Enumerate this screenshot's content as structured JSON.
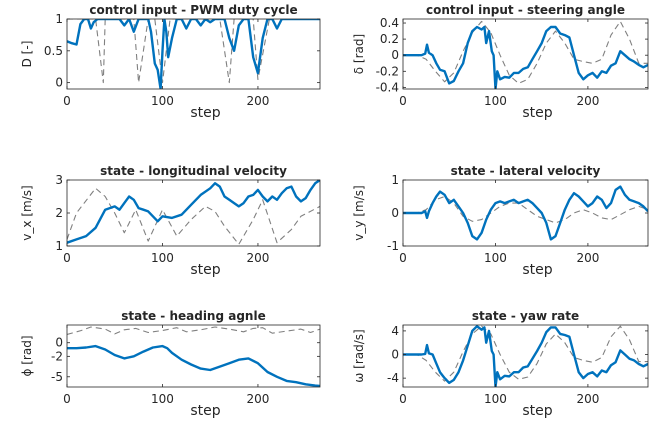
{
  "chart_data": [
    {
      "type": "line",
      "title": "control input - PWM duty cycle",
      "ylabel": "D [-]",
      "xlabel": "step",
      "xlim": [
        0,
        265
      ],
      "ylim": [
        -0.1,
        1
      ],
      "xticks": [
        0,
        100,
        200
      ],
      "yticks": [
        0,
        0.5,
        1
      ],
      "ytick_labels": [
        "0",
        "0.5",
        "1"
      ],
      "grid": false,
      "series": [
        {
          "style": "dashed-gray",
          "x": [
            0,
            12,
            20,
            25,
            30,
            38,
            40,
            50,
            60,
            70,
            75,
            85,
            92,
            100,
            108,
            115,
            125,
            130,
            140,
            150,
            160,
            170,
            175,
            185,
            195,
            200,
            212,
            220,
            226,
            235,
            245,
            250,
            265
          ],
          "y": [
            1,
            1,
            1,
            1,
            1,
            0,
            1,
            1,
            1,
            1,
            0,
            1,
            1,
            0,
            1,
            1,
            1,
            1,
            1,
            1,
            1,
            0,
            1,
            1,
            1,
            0.05,
            1,
            1,
            1,
            1,
            1,
            1,
            1
          ]
        },
        {
          "style": "solid-blue",
          "x": [
            0,
            5,
            10,
            14,
            18,
            22,
            25,
            28,
            32,
            35,
            40,
            45,
            50,
            55,
            60,
            65,
            70,
            75,
            80,
            85,
            88,
            92,
            95,
            98,
            100,
            102,
            104,
            106,
            110,
            115,
            120,
            125,
            130,
            135,
            140,
            145,
            150,
            155,
            160,
            165,
            170,
            175,
            180,
            185,
            190,
            195,
            200,
            205,
            210,
            215,
            220,
            225,
            230,
            235,
            240,
            245,
            250,
            255,
            260,
            265
          ],
          "y": [
            0.65,
            0.62,
            0.6,
            0.92,
            1,
            1,
            0.85,
            0.95,
            1,
            1,
            1,
            1,
            1,
            1,
            0.9,
            1,
            0.8,
            1,
            1,
            1,
            0.8,
            0.3,
            0.2,
            -0.1,
            0.5,
            1,
            0.8,
            0.4,
            0.7,
            1,
            1,
            0.85,
            1,
            1,
            0.9,
            1,
            0.95,
            1,
            1,
            1,
            0.7,
            0.5,
            0.9,
            1,
            1,
            0.4,
            0.15,
            0.7,
            1,
            1,
            0.85,
            1,
            1,
            1,
            1,
            1,
            1,
            1,
            1,
            1
          ]
        }
      ]
    },
    {
      "type": "line",
      "title": "control input - steering angle",
      "ylabel": "δ [rad]",
      "xlabel": "step",
      "xlim": [
        0,
        265
      ],
      "ylim": [
        -0.42,
        0.45
      ],
      "xticks": [
        0,
        100,
        200
      ],
      "yticks": [
        -0.4,
        -0.2,
        0,
        0.2,
        0.4
      ],
      "ytick_labels": [
        "-0.4",
        "-0.2",
        "0",
        "0.2",
        "0.4"
      ],
      "grid": false,
      "series": [
        {
          "style": "dashed-gray",
          "x": [
            0,
            15,
            25,
            35,
            45,
            55,
            65,
            75,
            85,
            95,
            105,
            115,
            125,
            135,
            145,
            155,
            165,
            175,
            185,
            195,
            205,
            215,
            225,
            235,
            245,
            255,
            265
          ],
          "y": [
            0,
            0,
            -0.05,
            -0.2,
            -0.33,
            -0.22,
            0.05,
            0.28,
            0.42,
            0.28,
            0,
            -0.25,
            -0.35,
            -0.3,
            -0.1,
            0.15,
            0.3,
            0.15,
            -0.05,
            -0.08,
            -0.1,
            -0.05,
            0.25,
            0.42,
            0.2,
            -0.1,
            -0.1
          ]
        },
        {
          "style": "solid-blue",
          "x": [
            0,
            10,
            20,
            24,
            26,
            28,
            32,
            36,
            40,
            45,
            50,
            55,
            60,
            65,
            70,
            75,
            80,
            85,
            88,
            90,
            93,
            96,
            98,
            100,
            102,
            105,
            110,
            115,
            120,
            125,
            130,
            135,
            140,
            145,
            150,
            155,
            160,
            165,
            170,
            175,
            180,
            185,
            190,
            195,
            200,
            205,
            210,
            215,
            220,
            225,
            230,
            235,
            240,
            245,
            250,
            255,
            260,
            265
          ],
          "y": [
            0,
            0,
            0,
            0.02,
            0.13,
            0.03,
            0.0,
            -0.1,
            -0.18,
            -0.2,
            -0.35,
            -0.32,
            -0.2,
            -0.1,
            0.15,
            0.3,
            0.35,
            0.32,
            0.35,
            0.15,
            0.3,
            0.05,
            0,
            -0.42,
            -0.2,
            -0.3,
            -0.27,
            -0.28,
            -0.22,
            -0.22,
            -0.17,
            -0.15,
            -0.05,
            0.05,
            0.15,
            0.3,
            0.35,
            0.35,
            0.27,
            0.25,
            0.22,
            0,
            -0.22,
            -0.3,
            -0.25,
            -0.22,
            -0.28,
            -0.2,
            -0.22,
            -0.13,
            -0.1,
            0.05,
            0.0,
            -0.05,
            -0.08,
            -0.12,
            -0.15,
            -0.12
          ]
        }
      ]
    },
    {
      "type": "line",
      "title": "state - longitudinal velocity",
      "ylabel": "v_x [m/s]",
      "xlabel": "step",
      "xlim": [
        0,
        265
      ],
      "ylim": [
        1,
        3
      ],
      "xticks": [
        0,
        100,
        200
      ],
      "yticks": [
        1,
        2,
        3
      ],
      "ytick_labels": [
        "1",
        "2",
        "3"
      ],
      "grid": false,
      "series": [
        {
          "style": "dashed-gray",
          "x": [
            0,
            10,
            30,
            40,
            50,
            60,
            72,
            85,
            100,
            115,
            130,
            145,
            155,
            165,
            180,
            195,
            205,
            220,
            235,
            245,
            265
          ],
          "y": [
            1.2,
            2,
            2.75,
            2.5,
            2,
            1.4,
            2.1,
            1.15,
            2.1,
            1.3,
            1.8,
            2.2,
            2.05,
            1.6,
            1.05,
            1.8,
            2.4,
            1.1,
            1.5,
            1.9,
            2.2
          ]
        },
        {
          "style": "solid-blue",
          "x": [
            0,
            10,
            20,
            30,
            40,
            50,
            55,
            60,
            65,
            70,
            75,
            80,
            85,
            90,
            95,
            100,
            110,
            120,
            130,
            140,
            150,
            155,
            160,
            165,
            170,
            175,
            180,
            185,
            190,
            195,
            200,
            205,
            210,
            215,
            220,
            225,
            230,
            235,
            240,
            245,
            250,
            255,
            260,
            265
          ],
          "y": [
            1.1,
            1.2,
            1.3,
            1.55,
            2.1,
            2.2,
            2.1,
            2.3,
            2.5,
            2.4,
            2.15,
            2.1,
            2.05,
            1.9,
            1.75,
            1.9,
            1.85,
            1.95,
            2.25,
            2.55,
            2.75,
            2.9,
            2.8,
            2.5,
            2.4,
            2.3,
            2.2,
            2.3,
            2.5,
            2.55,
            2.7,
            2.5,
            2.35,
            2.5,
            2.4,
            2.6,
            2.75,
            2.8,
            2.5,
            2.35,
            2.45,
            2.7,
            2.9,
            3.0
          ]
        }
      ]
    },
    {
      "type": "line",
      "title": "state - lateral velocity",
      "ylabel": "v_y [m/s]",
      "xlabel": "step",
      "xlim": [
        0,
        265
      ],
      "ylim": [
        -1,
        1
      ],
      "xticks": [
        0,
        100,
        200
      ],
      "yticks": [
        -1,
        0,
        1
      ],
      "ytick_labels": [
        "-1",
        "0",
        "1"
      ],
      "grid": false,
      "series": [
        {
          "style": "dashed-gray",
          "x": [
            0,
            15,
            25,
            35,
            45,
            55,
            65,
            75,
            85,
            95,
            105,
            115,
            125,
            135,
            145,
            155,
            165,
            175,
            185,
            195,
            205,
            215,
            225,
            235,
            245,
            255,
            265
          ],
          "y": [
            0,
            0,
            0.1,
            0.4,
            0.5,
            0.3,
            -0.1,
            -0.25,
            -0.2,
            0,
            0.2,
            0.3,
            0.3,
            0.1,
            -0.1,
            -0.2,
            -0.3,
            -0.2,
            0,
            0.1,
            0,
            -0.15,
            -0.2,
            -0.05,
            0.1,
            0.2,
            0.1
          ]
        },
        {
          "style": "solid-blue",
          "x": [
            0,
            10,
            20,
            24,
            26,
            28,
            32,
            36,
            40,
            45,
            50,
            55,
            60,
            65,
            70,
            75,
            80,
            85,
            90,
            95,
            100,
            105,
            110,
            115,
            120,
            125,
            130,
            135,
            140,
            145,
            150,
            155,
            160,
            165,
            170,
            175,
            180,
            185,
            190,
            195,
            200,
            205,
            210,
            215,
            220,
            225,
            230,
            235,
            240,
            245,
            250,
            255,
            260,
            265
          ],
          "y": [
            0,
            0,
            0,
            0.05,
            -0.15,
            0.05,
            0.3,
            0.5,
            0.65,
            0.55,
            0.3,
            0.4,
            0.2,
            0,
            -0.3,
            -0.7,
            -0.8,
            -0.6,
            -0.2,
            0.1,
            0.3,
            0.35,
            0.3,
            0.35,
            0.4,
            0.3,
            0.35,
            0.4,
            0.3,
            0.15,
            0,
            -0.3,
            -0.8,
            -0.7,
            -0.3,
            0.1,
            0.4,
            0.6,
            0.5,
            0.35,
            0.2,
            0.3,
            0.5,
            0.4,
            0.15,
            0.3,
            0.7,
            0.8,
            0.55,
            0.4,
            0.35,
            0.3,
            0.2,
            0.05
          ]
        }
      ]
    },
    {
      "type": "line",
      "title": "state - heading agnle",
      "ylabel": "ϕ [rad]",
      "xlabel": "step",
      "xlim": [
        0,
        265
      ],
      "ylim": [
        -6.5,
        2.6
      ],
      "xticks": [
        0,
        100,
        200
      ],
      "yticks": [
        -5,
        -2,
        0
      ],
      "ytick_labels": [
        "-5",
        "-2",
        "0"
      ],
      "grid": false,
      "series": [
        {
          "style": "dashed-gray",
          "x": [
            0,
            15,
            25,
            40,
            50,
            60,
            72,
            85,
            100,
            115,
            125,
            140,
            155,
            170,
            185,
            195,
            205,
            215,
            230,
            245,
            255,
            265
          ],
          "y": [
            1.2,
            1.8,
            2.3,
            2.0,
            1.3,
            1.9,
            2.1,
            1.5,
            1.8,
            2.2,
            1.6,
            1.9,
            2.3,
            2.0,
            1.6,
            2.1,
            2.2,
            1.4,
            1.7,
            2.0,
            1.5,
            2.0
          ]
        },
        {
          "style": "solid-blue",
          "x": [
            0,
            10,
            20,
            30,
            40,
            50,
            60,
            70,
            80,
            90,
            100,
            105,
            110,
            120,
            130,
            140,
            150,
            160,
            170,
            180,
            190,
            200,
            210,
            220,
            230,
            240,
            250,
            260,
            265
          ],
          "y": [
            -0.8,
            -0.8,
            -0.7,
            -0.5,
            -1.0,
            -1.8,
            -2.3,
            -2.0,
            -1.3,
            -0.7,
            -0.5,
            -0.8,
            -1.5,
            -2.5,
            -3.2,
            -3.8,
            -4.0,
            -3.5,
            -3.0,
            -2.5,
            -2.3,
            -3.0,
            -4.3,
            -5.0,
            -5.6,
            -5.8,
            -6.1,
            -6.3,
            -6.35
          ]
        }
      ]
    },
    {
      "type": "line",
      "title": "state - yaw rate",
      "ylabel": "ω [rad/s]",
      "xlabel": "step",
      "xlim": [
        0,
        265
      ],
      "ylim": [
        -5.5,
        5
      ],
      "xticks": [
        0,
        100,
        200
      ],
      "yticks": [
        -4,
        0,
        4
      ],
      "ytick_labels": [
        "-4",
        "0",
        "4"
      ],
      "grid": false,
      "series": [
        {
          "style": "dashed-gray",
          "x": [
            0,
            15,
            25,
            35,
            45,
            55,
            65,
            75,
            85,
            95,
            105,
            115,
            125,
            135,
            145,
            155,
            165,
            175,
            185,
            195,
            205,
            215,
            225,
            235,
            245,
            255,
            265
          ],
          "y": [
            0,
            0,
            -1,
            -3,
            -4.5,
            -3,
            0.5,
            3.5,
            4.8,
            3.5,
            0,
            -3,
            -4.2,
            -3.8,
            -1.5,
            1.8,
            3.5,
            2,
            -0.5,
            -1,
            -1.3,
            -0.5,
            3,
            4.8,
            2.5,
            -1.2,
            -1.2
          ]
        },
        {
          "style": "solid-blue",
          "x": [
            0,
            10,
            20,
            24,
            26,
            28,
            32,
            36,
            40,
            45,
            50,
            55,
            60,
            65,
            70,
            75,
            80,
            85,
            88,
            90,
            93,
            96,
            98,
            100,
            102,
            105,
            110,
            115,
            120,
            125,
            130,
            135,
            140,
            145,
            150,
            155,
            160,
            165,
            170,
            175,
            180,
            185,
            190,
            195,
            200,
            205,
            210,
            215,
            220,
            225,
            230,
            235,
            240,
            245,
            250,
            255,
            260,
            265
          ],
          "y": [
            0,
            0,
            0,
            0.1,
            1.6,
            0.2,
            0,
            -1.5,
            -3,
            -4,
            -4.8,
            -4.3,
            -3,
            -1,
            1.5,
            4,
            4.8,
            4.2,
            4.6,
            2,
            4,
            0.6,
            0,
            -5.5,
            -3,
            -4.2,
            -3.6,
            -3.7,
            -3,
            -3,
            -2.2,
            -2,
            -0.7,
            0.6,
            2,
            3.8,
            4.6,
            4.6,
            3.5,
            3.3,
            3,
            0,
            -3,
            -4,
            -3.3,
            -3,
            -3.7,
            -2.7,
            -3,
            -1.8,
            -1.3,
            0.7,
            0,
            -0.7,
            -1,
            -1.6,
            -2,
            -1.6
          ]
        }
      ]
    }
  ]
}
